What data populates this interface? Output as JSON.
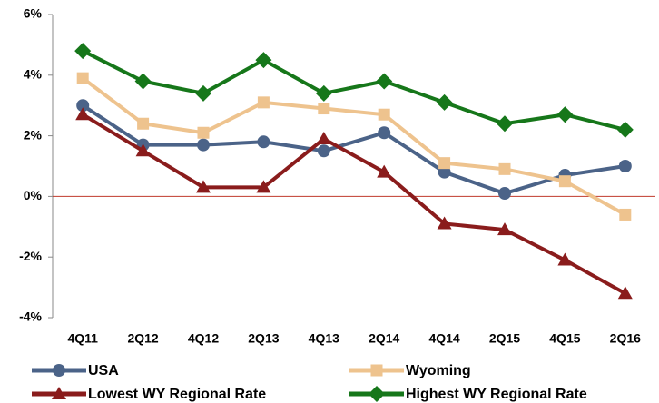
{
  "chart_data": {
    "type": "line",
    "categories": [
      "4Q11",
      "2Q12",
      "4Q12",
      "2Q13",
      "4Q13",
      "2Q14",
      "4Q14",
      "2Q15",
      "4Q15",
      "2Q16"
    ],
    "series": [
      {
        "name": "USA",
        "color": "#4b6388",
        "marker": "circle",
        "values": [
          3.0,
          1.7,
          1.7,
          1.8,
          1.5,
          2.1,
          0.8,
          0.1,
          0.7,
          1.0
        ]
      },
      {
        "name": "Wyoming",
        "color": "#eec38e",
        "marker": "square",
        "values": [
          3.9,
          2.4,
          2.1,
          3.1,
          2.9,
          2.7,
          1.1,
          0.9,
          0.5,
          -0.6
        ]
      },
      {
        "name": "Lowest WY Regional Rate",
        "color": "#8a1c1c",
        "marker": "triangle",
        "values": [
          2.7,
          1.5,
          0.3,
          0.3,
          1.9,
          0.8,
          -0.9,
          -1.1,
          -2.1,
          -3.2
        ]
      },
      {
        "name": "Highest WY Regional Rate",
        "color": "#16771a",
        "marker": "diamond",
        "values": [
          4.8,
          3.8,
          3.4,
          4.5,
          3.4,
          3.8,
          3.1,
          2.4,
          2.7,
          2.2
        ]
      }
    ],
    "ylim": [
      -4,
      6
    ],
    "yticks": [
      {
        "value": -4,
        "label": "-4%"
      },
      {
        "value": -2,
        "label": "-2%"
      },
      {
        "value": 0,
        "label": "0%"
      },
      {
        "value": 2,
        "label": "2%"
      },
      {
        "value": 4,
        "label": "4%"
      },
      {
        "value": 6,
        "label": "6%"
      }
    ],
    "zero_line_color": "#c0392b",
    "grid": false
  }
}
